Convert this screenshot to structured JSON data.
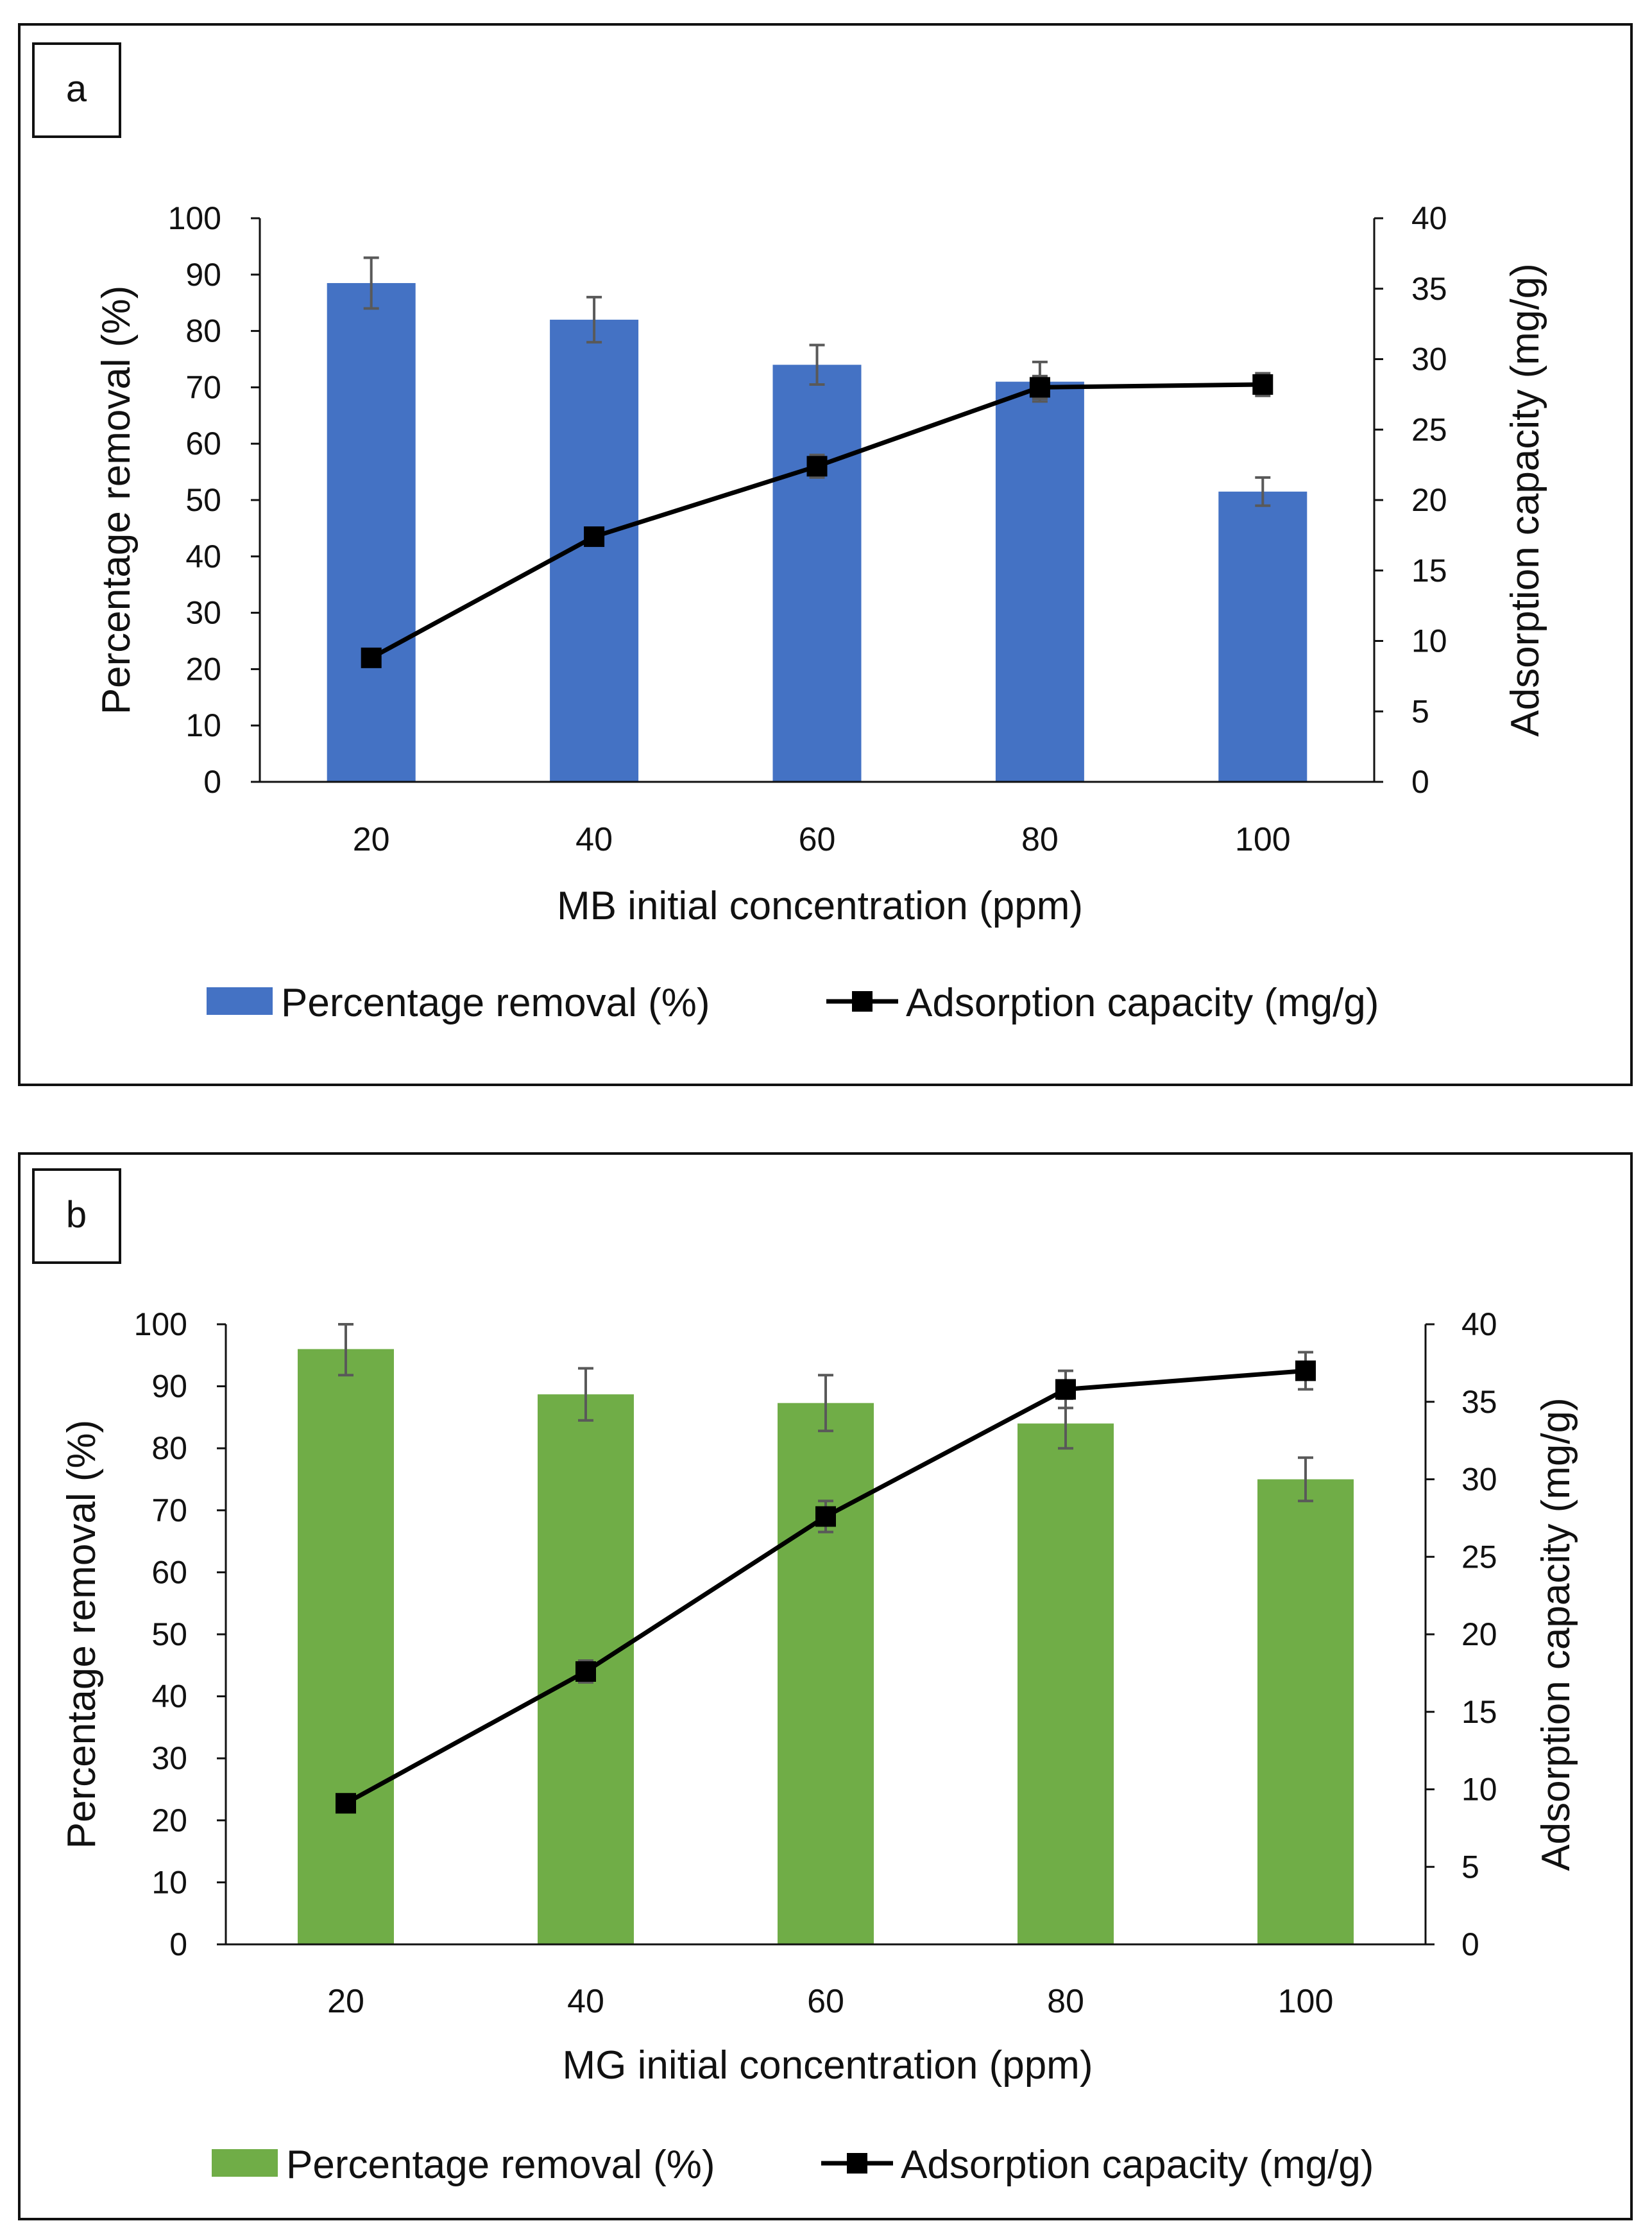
{
  "chart_data": [
    {
      "type": "bar+line",
      "panel_label": "a",
      "categories": [
        "20",
        "40",
        "60",
        "80",
        "100"
      ],
      "xlabel": "MB initial concentration (ppm)",
      "ylabel_left": "Percentage removal (%)",
      "ylabel_right": "Adsorption capacity (mg/g)",
      "ylim_left": [
        0,
        100
      ],
      "yticks_left": [
        "0",
        "10",
        "20",
        "30",
        "40",
        "50",
        "60",
        "70",
        "80",
        "90",
        "100"
      ],
      "ylim_right": [
        0,
        40
      ],
      "yticks_right": [
        "0",
        "5",
        "10",
        "15",
        "20",
        "25",
        "30",
        "35",
        "40"
      ],
      "legend_position": "bottom",
      "bar_color": "#4472C4",
      "line_color": "#000000",
      "series": [
        {
          "name": "Percentage removal (%)",
          "kind": "bar",
          "axis": "left",
          "values": [
            88.5,
            82,
            74,
            71,
            51.5
          ],
          "errors": [
            4.5,
            4,
            3.5,
            3.5,
            2.5
          ]
        },
        {
          "name": "Adsorption capacity (mg/g)",
          "kind": "line",
          "axis": "right",
          "marker": "square",
          "values": [
            8.8,
            17.4,
            22.4,
            28,
            28.2
          ],
          "errors": [
            0.4,
            0.6,
            0.8,
            0.8,
            0.8
          ]
        }
      ]
    },
    {
      "type": "bar+line",
      "panel_label": "b",
      "categories": [
        "20",
        "40",
        "60",
        "80",
        "100"
      ],
      "xlabel": "MG initial concentration (ppm)",
      "ylabel_left": "Percentage removal (%)",
      "ylabel_right": "Adsorption capacity (mg/g)",
      "ylim_left": [
        0,
        100
      ],
      "yticks_left": [
        "0",
        "10",
        "20",
        "30",
        "40",
        "50",
        "60",
        "70",
        "80",
        "90",
        "100"
      ],
      "ylim_right": [
        0,
        40
      ],
      "yticks_right": [
        "0",
        "5",
        "10",
        "15",
        "20",
        "25",
        "30",
        "35",
        "40"
      ],
      "legend_position": "bottom",
      "bar_color": "#70AD47",
      "line_color": "#000000",
      "series": [
        {
          "name": "Percentage removal (%)",
          "kind": "bar",
          "axis": "left",
          "values": [
            96,
            88.7,
            87.3,
            84,
            75
          ],
          "errors": [
            4.2,
            4.2,
            4.5,
            4,
            3.5
          ]
        },
        {
          "name": "Adsorption capacity (mg/g)",
          "kind": "line",
          "axis": "right",
          "marker": "square",
          "values": [
            9.1,
            17.6,
            27.6,
            35.8,
            37
          ],
          "errors": [
            0.4,
            0.7,
            1.0,
            1.2,
            1.2
          ]
        }
      ]
    }
  ]
}
